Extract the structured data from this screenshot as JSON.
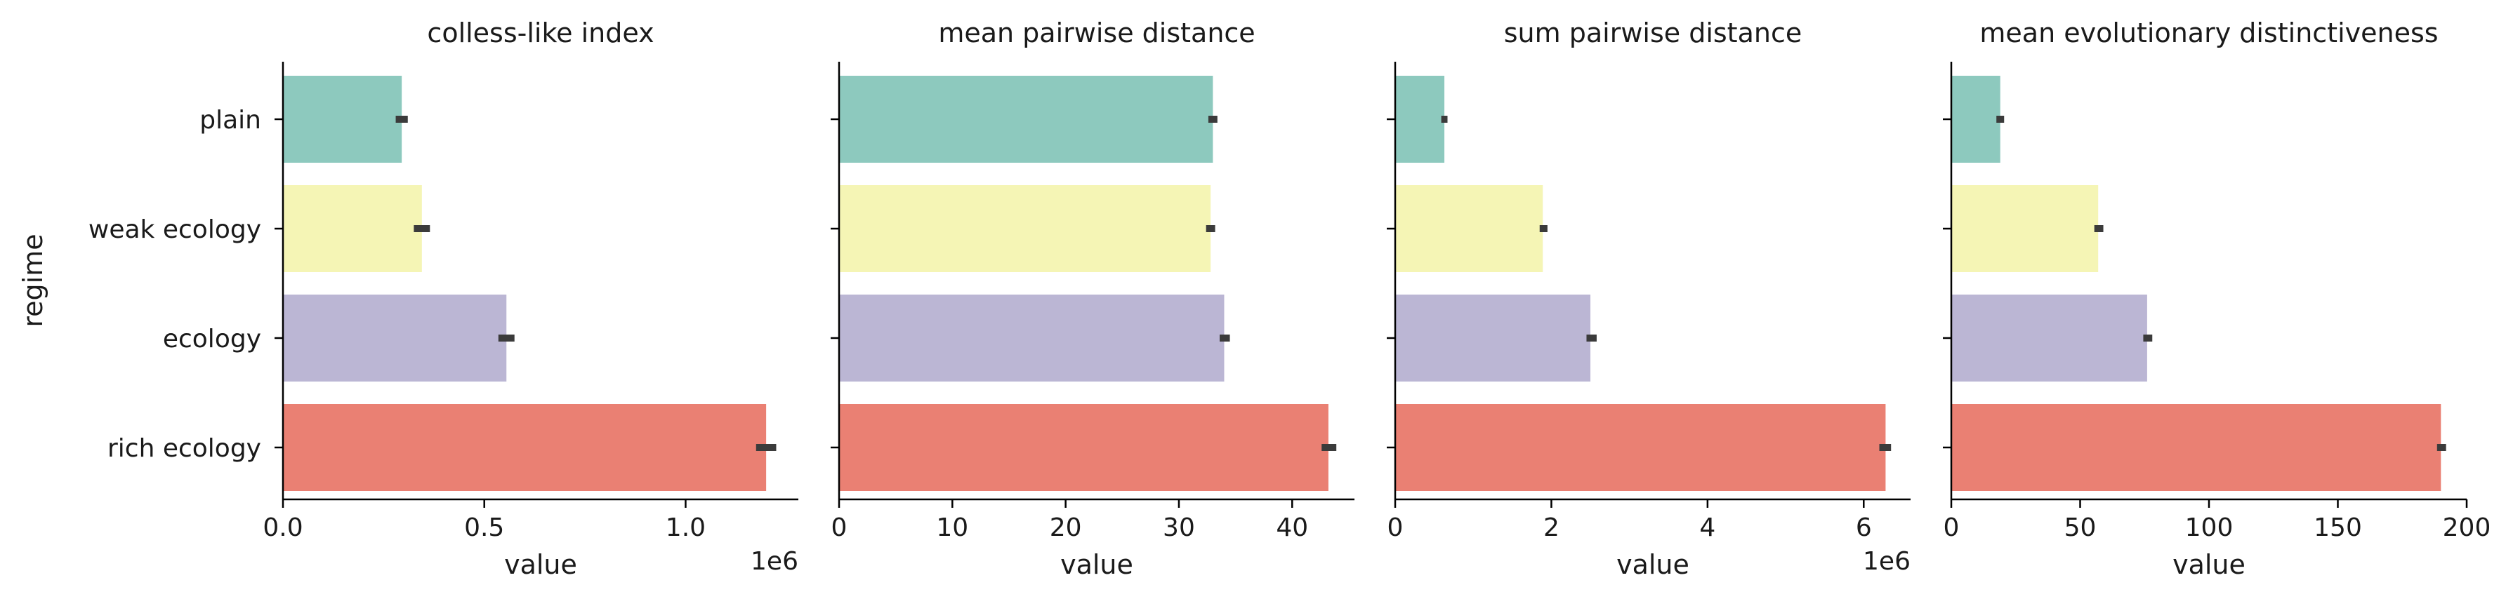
{
  "chart_data": {
    "type": "bar",
    "orientation": "horizontal",
    "y_axis_label": "regime",
    "categories": [
      "plain",
      "weak ecology",
      "ecology",
      "rich ecology"
    ],
    "colors": [
      "#8dc9be",
      "#f5f5b5",
      "#bbb6d4",
      "#ea8073"
    ],
    "error_bar_color": "#3b3b3b",
    "panels": [
      {
        "title": "colless-like index",
        "xlabel": "value",
        "offset_text": "1e6",
        "xlim": [
          0,
          1.28
        ],
        "xticks": [
          0,
          0.5,
          1.0
        ],
        "xtick_labels": [
          "0.0",
          "0.5",
          "1.0"
        ],
        "values": [
          0.295,
          0.345,
          0.555,
          1.2
        ],
        "errors": [
          [
            0.28,
            0.31
          ],
          [
            0.325,
            0.365
          ],
          [
            0.535,
            0.575
          ],
          [
            1.175,
            1.225
          ]
        ]
      },
      {
        "title": "mean pairwise distance",
        "xlabel": "value",
        "offset_text": "",
        "xlim": [
          0,
          45.5
        ],
        "xticks": [
          0,
          10,
          20,
          30,
          40
        ],
        "xtick_labels": [
          "0",
          "10",
          "20",
          "30",
          "40"
        ],
        "values": [
          33.0,
          32.8,
          34.0,
          43.2
        ],
        "errors": [
          [
            32.6,
            33.4
          ],
          [
            32.4,
            33.2
          ],
          [
            33.6,
            34.5
          ],
          [
            42.6,
            43.9
          ]
        ]
      },
      {
        "title": "sum pairwise distance",
        "xlabel": "value",
        "offset_text": "1e6",
        "xlim": [
          0,
          6.6
        ],
        "xticks": [
          0,
          2,
          4,
          6
        ],
        "xtick_labels": [
          "0",
          "2",
          "4",
          "6"
        ],
        "values": [
          0.63,
          1.89,
          2.5,
          6.28
        ],
        "errors": [
          [
            0.59,
            0.67
          ],
          [
            1.85,
            1.95
          ],
          [
            2.45,
            2.58
          ],
          [
            6.2,
            6.35
          ]
        ]
      },
      {
        "title": "mean evolutionary distinctiveness",
        "xlabel": "value",
        "offset_text": "",
        "xlim": [
          0,
          200
        ],
        "xticks": [
          0,
          50,
          100,
          150,
          200
        ],
        "xtick_labels": [
          "0",
          "50",
          "100",
          "150",
          "200"
        ],
        "values": [
          19,
          57,
          76,
          190
        ],
        "errors": [
          [
            17.5,
            20.5
          ],
          [
            55.5,
            59
          ],
          [
            74.5,
            78
          ],
          [
            188.5,
            192
          ]
        ]
      }
    ]
  }
}
